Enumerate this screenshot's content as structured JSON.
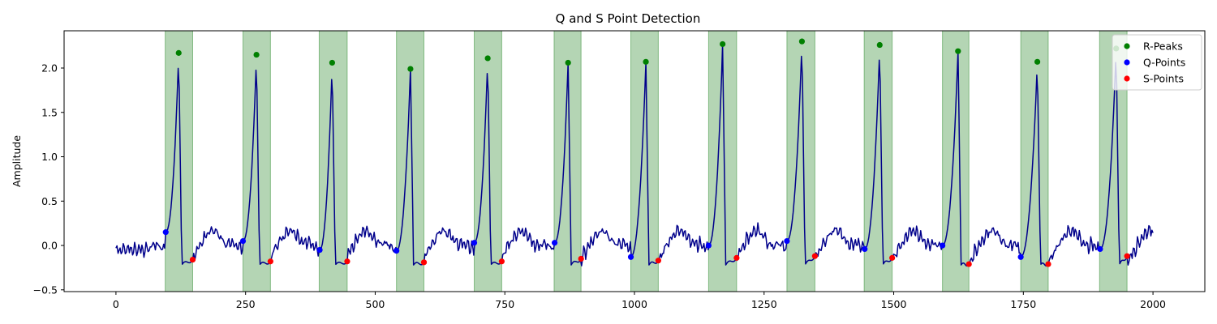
{
  "chart_data": {
    "type": "line",
    "title": "Q and S Point Detection",
    "xlabel": "",
    "ylabel": "Amplitude",
    "xlim": [
      -100,
      2100
    ],
    "ylim": [
      -0.52,
      2.42
    ],
    "x_ticks": [
      0,
      250,
      500,
      750,
      1000,
      1250,
      1500,
      1750,
      2000
    ],
    "y_ticks": [
      -0.5,
      0.0,
      0.5,
      1.0,
      1.5,
      2.0
    ],
    "y_tick_labels": [
      "−0.5",
      "0.0",
      "0.5",
      "1.0",
      "1.5",
      "2.0"
    ],
    "grid": false,
    "legend_position": "top-right",
    "colors": {
      "signal": "#00008b",
      "highlight": "#2e8b2e",
      "r_peaks": "#008000",
      "q_points": "#0000ff",
      "s_points": "#ff0000"
    },
    "qrs_regions": [
      [
        95,
        148
      ],
      [
        245,
        298
      ],
      [
        392,
        446
      ],
      [
        541,
        594
      ],
      [
        691,
        744
      ],
      [
        845,
        897
      ],
      [
        993,
        1046
      ],
      [
        1143,
        1197
      ],
      [
        1294,
        1348
      ],
      [
        1443,
        1497
      ],
      [
        1594,
        1645
      ],
      [
        1745,
        1798
      ],
      [
        1897,
        1950
      ]
    ],
    "series": [
      {
        "name": "R-Peaks",
        "kind": "points",
        "x": [
          121,
          271,
          417,
          568,
          717,
          872,
          1022,
          1170,
          1323,
          1473,
          1624,
          1777,
          1929
        ],
        "y": [
          2.17,
          2.15,
          2.06,
          1.99,
          2.11,
          2.06,
          2.07,
          2.27,
          2.3,
          2.26,
          2.19,
          2.07,
          2.22
        ]
      },
      {
        "name": "Q-Points",
        "kind": "points",
        "x": [
          96,
          245,
          393,
          541,
          691,
          846,
          993,
          1143,
          1294,
          1444,
          1594,
          1745,
          1898
        ],
        "y": [
          0.15,
          0.05,
          -0.05,
          -0.06,
          0.03,
          0.03,
          -0.13,
          0.0,
          0.05,
          -0.04,
          0.0,
          -0.13,
          -0.04
        ]
      },
      {
        "name": "S-Points",
        "kind": "points",
        "x": [
          148,
          298,
          446,
          594,
          744,
          897,
          1046,
          1197,
          1348,
          1497,
          1645,
          1798,
          1950
        ],
        "y": [
          -0.16,
          -0.18,
          -0.18,
          -0.19,
          -0.18,
          -0.15,
          -0.17,
          -0.14,
          -0.12,
          -0.14,
          -0.21,
          -0.21,
          -0.12
        ]
      }
    ],
    "legend_entries": [
      "R-Peaks",
      "Q-Points",
      "S-Points"
    ]
  }
}
